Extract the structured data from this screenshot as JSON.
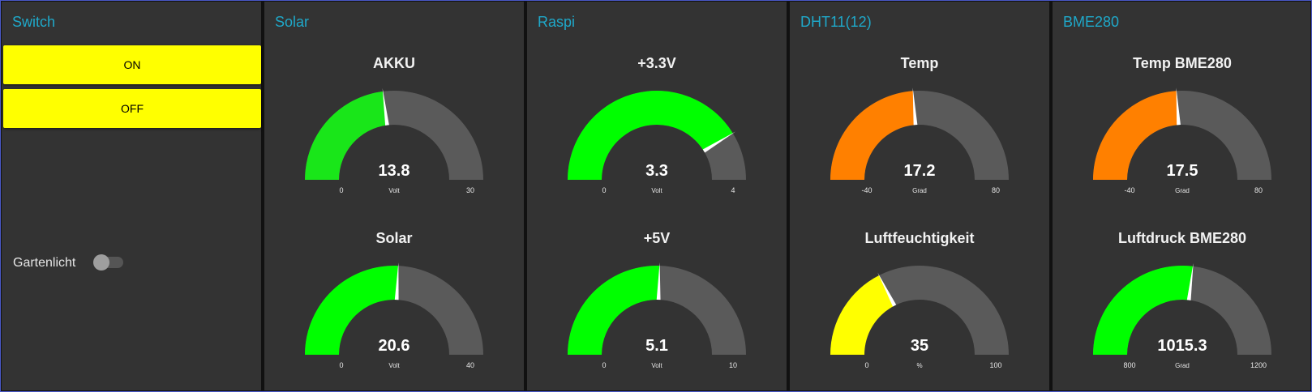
{
  "colors": {
    "track": "#5a5a5a",
    "needle": "#ffffff",
    "title": "#1fa8c9",
    "button": "#ffff00"
  },
  "groups": [
    {
      "title": "Switch"
    },
    {
      "title": "Solar"
    },
    {
      "title": "Raspi"
    },
    {
      "title": "DHT11(12)"
    },
    {
      "title": "BME280"
    }
  ],
  "switch": {
    "on_label": "ON",
    "off_label": "OFF",
    "toggle_label": "Gartenlicht",
    "toggle_on": false
  },
  "gauges": [
    {
      "title": "AKKU",
      "value": 13.8,
      "display": "13.8",
      "min": 0,
      "max": 30,
      "min_label": "0",
      "max_label": "30",
      "units": "Volt",
      "color": "#19e619"
    },
    {
      "title": "Solar",
      "value": 20.6,
      "display": "20.6",
      "min": 0,
      "max": 40,
      "min_label": "0",
      "max_label": "40",
      "units": "Volt",
      "color": "#00ff00"
    },
    {
      "title": "+3.3V",
      "value": 3.3,
      "display": "3.3",
      "min": 0,
      "max": 4,
      "min_label": "0",
      "max_label": "4",
      "units": "Volt",
      "color": "#00ff00"
    },
    {
      "title": "+5V",
      "value": 5.1,
      "display": "5.1",
      "min": 0,
      "max": 10,
      "min_label": "0",
      "max_label": "10",
      "units": "Volt",
      "color": "#00ff00"
    },
    {
      "title": "Temp",
      "value": 17.2,
      "display": "17.2",
      "min": -40,
      "max": 80,
      "min_label": "-40",
      "max_label": "80",
      "units": "Grad",
      "color": "#ff8000"
    },
    {
      "title": "Luftfeuchtigkeit",
      "value": 35,
      "display": "35",
      "min": 0,
      "max": 100,
      "min_label": "0",
      "max_label": "100",
      "units": "%",
      "color": "#ffff00"
    },
    {
      "title": "Temp BME280",
      "value": 17.5,
      "display": "17.5",
      "min": -40,
      "max": 80,
      "min_label": "-40",
      "max_label": "80",
      "units": "Grad",
      "color": "#ff8000"
    },
    {
      "title": "Luftdruck BME280",
      "value": 1015.3,
      "display": "1015.3",
      "min": 800,
      "max": 1200,
      "min_label": "800",
      "max_label": "1200",
      "units": "Grad",
      "color": "#00ff00"
    }
  ]
}
